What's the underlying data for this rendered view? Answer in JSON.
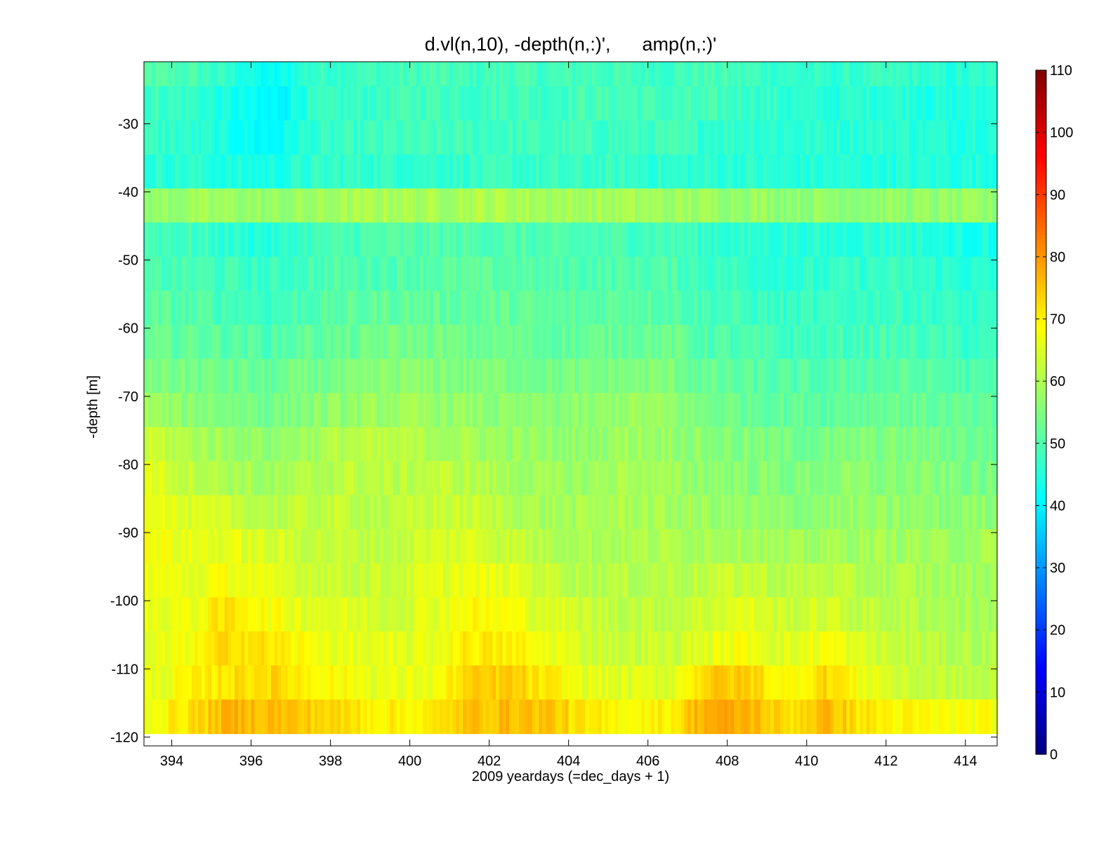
{
  "chart_data": {
    "type": "heatmap",
    "title": "d.vl(n,10), -depth(n,:)',      amp(n,:)'",
    "xlabel": "2009 yeardays (=dec_days + 1)",
    "ylabel": "-depth [m]",
    "xlim": [
      393.3,
      414.8
    ],
    "ylim": [
      -121.3,
      -20.9
    ],
    "x_ticks": [
      394,
      396,
      398,
      400,
      402,
      404,
      406,
      408,
      410,
      412,
      414
    ],
    "y_ticks": [
      -30,
      -40,
      -50,
      -60,
      -70,
      -80,
      -90,
      -100,
      -110,
      -120
    ],
    "colorbar": {
      "colormap": "jet",
      "clim": [
        0,
        110
      ],
      "ticks": [
        0,
        10,
        20,
        30,
        40,
        50,
        60,
        70,
        80,
        90,
        100,
        110
      ]
    },
    "depth_bins": [
      -22,
      -27,
      -32,
      -37,
      -42,
      -47,
      -52,
      -57,
      -62,
      -67,
      -72,
      -77,
      -82,
      -87,
      -92,
      -97,
      -102,
      -107,
      -112,
      -117
    ],
    "time_columns": [
      393.5,
      394.5,
      395.5,
      396.5,
      397.5,
      398.5,
      399.5,
      400.5,
      401.5,
      402.5,
      403.5,
      404.5,
      405.5,
      406.5,
      407.5,
      408.5,
      409.5,
      410.5,
      411.5,
      412.5,
      413.5,
      414.5
    ],
    "amplitude_grid": [
      [
        50,
        49,
        46,
        41,
        47,
        48,
        48,
        49,
        48,
        49,
        48,
        49,
        48,
        48,
        49,
        48,
        47,
        46,
        47,
        47,
        45,
        46
      ],
      [
        48,
        47,
        43,
        40,
        46,
        47,
        48,
        49,
        48,
        49,
        48,
        49,
        49,
        48,
        48,
        48,
        46,
        45,
        46,
        46,
        44,
        45
      ],
      [
        47,
        46,
        43,
        41,
        46,
        47,
        48,
        48,
        48,
        48,
        48,
        48,
        48,
        48,
        47,
        47,
        46,
        46,
        46,
        46,
        45,
        46
      ],
      [
        46,
        46,
        44,
        44,
        46,
        47,
        47,
        47,
        47,
        47,
        47,
        47,
        47,
        46,
        46,
        46,
        45,
        45,
        45,
        45,
        45,
        45
      ],
      [
        57,
        58,
        58,
        57,
        58,
        59,
        60,
        59,
        60,
        60,
        59,
        59,
        59,
        58,
        58,
        58,
        57,
        57,
        57,
        57,
        57,
        57
      ],
      [
        49,
        48,
        46,
        45,
        48,
        49,
        50,
        50,
        50,
        50,
        49,
        49,
        49,
        49,
        47,
        46,
        46,
        45,
        46,
        46,
        44,
        44
      ],
      [
        49,
        49,
        48,
        47,
        49,
        50,
        50,
        51,
        51,
        51,
        50,
        50,
        50,
        50,
        48,
        47,
        46,
        46,
        47,
        47,
        46,
        45
      ],
      [
        51,
        50,
        49,
        48,
        50,
        51,
        52,
        52,
        52,
        52,
        51,
        51,
        52,
        51,
        49,
        48,
        47,
        47,
        48,
        48,
        47,
        46
      ],
      [
        52,
        52,
        51,
        50,
        52,
        52,
        54,
        54,
        53,
        53,
        52,
        52,
        53,
        53,
        50,
        49,
        48,
        48,
        49,
        49,
        48,
        47
      ],
      [
        55,
        54,
        53,
        52,
        54,
        54,
        56,
        56,
        55,
        55,
        54,
        54,
        55,
        55,
        52,
        51,
        50,
        50,
        51,
        51,
        50,
        49
      ],
      [
        58,
        56,
        55,
        54,
        56,
        57,
        58,
        58,
        57,
        56,
        56,
        56,
        58,
        57,
        54,
        53,
        52,
        52,
        53,
        53,
        52,
        51
      ],
      [
        63,
        60,
        58,
        57,
        59,
        61,
        61,
        60,
        59,
        58,
        57,
        57,
        59,
        58,
        56,
        55,
        54,
        54,
        55,
        55,
        54,
        53
      ],
      [
        66,
        62,
        60,
        58,
        60,
        62,
        61,
        62,
        61,
        59,
        58,
        58,
        60,
        58,
        57,
        56,
        55,
        56,
        56,
        56,
        55,
        54
      ],
      [
        68,
        64,
        63,
        61,
        62,
        62,
        61,
        63,
        63,
        61,
        59,
        59,
        60,
        59,
        58,
        57,
        56,
        57,
        57,
        57,
        56,
        57
      ],
      [
        68,
        66,
        66,
        64,
        63,
        62,
        62,
        64,
        65,
        63,
        61,
        60,
        60,
        60,
        60,
        60,
        58,
        59,
        59,
        59,
        58,
        59
      ],
      [
        67,
        66,
        68,
        65,
        64,
        63,
        63,
        65,
        67,
        66,
        63,
        61,
        61,
        61,
        62,
        63,
        61,
        62,
        60,
        60,
        59,
        59
      ],
      [
        66,
        67,
        72,
        68,
        66,
        65,
        64,
        66,
        69,
        68,
        65,
        63,
        62,
        62,
        64,
        66,
        63,
        64,
        62,
        61,
        60,
        59
      ],
      [
        65,
        68,
        73,
        71,
        68,
        66,
        65,
        66,
        71,
        70,
        67,
        64,
        63,
        63,
        66,
        68,
        65,
        68,
        64,
        62,
        61,
        60
      ],
      [
        66,
        69,
        72,
        73,
        70,
        68,
        66,
        67,
        73,
        74,
        70,
        66,
        65,
        65,
        74,
        74,
        68,
        73,
        67,
        63,
        62,
        61
      ],
      [
        68,
        72,
        77,
        76,
        74,
        72,
        70,
        70,
        75,
        76,
        75,
        70,
        69,
        70,
        78,
        77,
        72,
        76,
        71,
        69,
        68,
        68
      ]
    ]
  }
}
